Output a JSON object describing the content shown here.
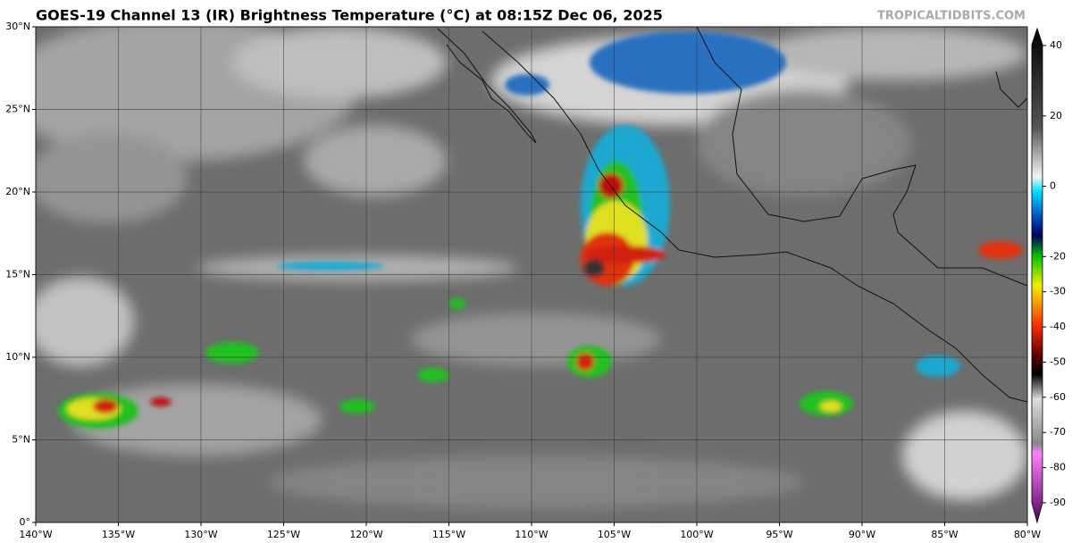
{
  "title": "GOES-19 Channel 13 (IR) Brightness Temperature (°C) at 08:15Z Dec 06, 2025",
  "watermark": "TROPICALTIDBITS.COM",
  "lat_ticks": [
    {
      "value": 30,
      "label": "30°N"
    },
    {
      "value": 25,
      "label": "25°N"
    },
    {
      "value": 20,
      "label": "20°N"
    },
    {
      "value": 15,
      "label": "15°N"
    },
    {
      "value": 10,
      "label": "10°N"
    },
    {
      "value": 5,
      "label": "5°N"
    },
    {
      "value": 0,
      "label": "0°"
    }
  ],
  "lon_ticks": [
    {
      "value": -140,
      "label": "140°W"
    },
    {
      "value": -135,
      "label": "135°W"
    },
    {
      "value": -130,
      "label": "130°W"
    },
    {
      "value": -125,
      "label": "125°W"
    },
    {
      "value": -120,
      "label": "120°W"
    },
    {
      "value": -115,
      "label": "115°W"
    },
    {
      "value": -110,
      "label": "110°W"
    },
    {
      "value": -105,
      "label": "105°W"
    },
    {
      "value": -100,
      "label": "100°W"
    },
    {
      "value": -95,
      "label": "95°W"
    },
    {
      "value": -90,
      "label": "90°W"
    },
    {
      "value": -85,
      "label": "85°W"
    },
    {
      "value": -80,
      "label": "80°W"
    }
  ],
  "colorbar_ticks": [
    40,
    20,
    0,
    -20,
    -30,
    -40,
    -50,
    -60,
    -70,
    -80,
    -90
  ]
}
